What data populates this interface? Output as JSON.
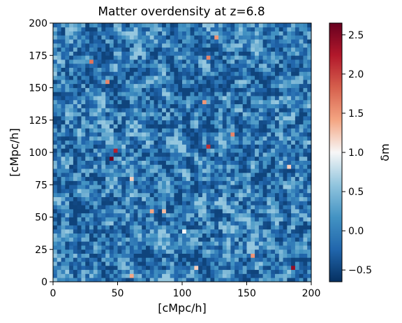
{
  "chart_data": {
    "type": "heatmap",
    "title": "Matter overdensity at z=6.8",
    "xlabel": "[cMpc/h]",
    "ylabel": "[cMpc/h]",
    "xlim": [
      0,
      200
    ],
    "ylim": [
      0,
      200
    ],
    "xticks": [
      "0",
      "50",
      "100",
      "150",
      "200"
    ],
    "yticks": [
      "0",
      "25",
      "50",
      "75",
      "100",
      "125",
      "150",
      "175",
      "200"
    ],
    "grid": false,
    "colormap": "RdBu_r",
    "colorbar": {
      "label": "δ_m",
      "label_display": "δm",
      "range": [
        -0.65,
        2.65
      ],
      "ticks": [
        "−0.5",
        "0.0",
        "0.5",
        "1.0",
        "1.5",
        "2.0",
        "2.5"
      ],
      "tick_values": [
        -0.5,
        0.0,
        0.5,
        1.0,
        1.5,
        2.0,
        2.5
      ],
      "colors": {
        "low": "#053061",
        "mid_low": "#4393c3",
        "center": "#f7f7f7",
        "mid_high": "#f4a582",
        "high": "#67001f"
      }
    },
    "grid_cells": [
      64,
      64
    ],
    "background_level": [
      -0.5,
      0.6
    ],
    "hotspots": [
      {
        "x": 45,
        "y": 95,
        "value": 2.6
      },
      {
        "x": 48,
        "y": 102,
        "value": 2.2
      },
      {
        "x": 186,
        "y": 10,
        "value": 2.4
      },
      {
        "x": 120,
        "y": 105,
        "value": 2.1
      },
      {
        "x": 29,
        "y": 170,
        "value": 1.7
      },
      {
        "x": 120,
        "y": 173,
        "value": 1.6
      },
      {
        "x": 42,
        "y": 154,
        "value": 1.6
      },
      {
        "x": 126,
        "y": 188,
        "value": 1.5
      },
      {
        "x": 139,
        "y": 114,
        "value": 1.6
      },
      {
        "x": 118,
        "y": 140,
        "value": 1.5
      },
      {
        "x": 78,
        "y": 55,
        "value": 1.4
      },
      {
        "x": 86,
        "y": 55,
        "value": 1.3
      },
      {
        "x": 60,
        "y": 6,
        "value": 1.4
      },
      {
        "x": 155,
        "y": 20,
        "value": 1.5
      },
      {
        "x": 62,
        "y": 80,
        "value": 1.2
      },
      {
        "x": 112,
        "y": 10,
        "value": 1.2
      },
      {
        "x": 183,
        "y": 88,
        "value": 1.2
      },
      {
        "x": 100,
        "y": 40,
        "value": 1.0
      }
    ]
  }
}
